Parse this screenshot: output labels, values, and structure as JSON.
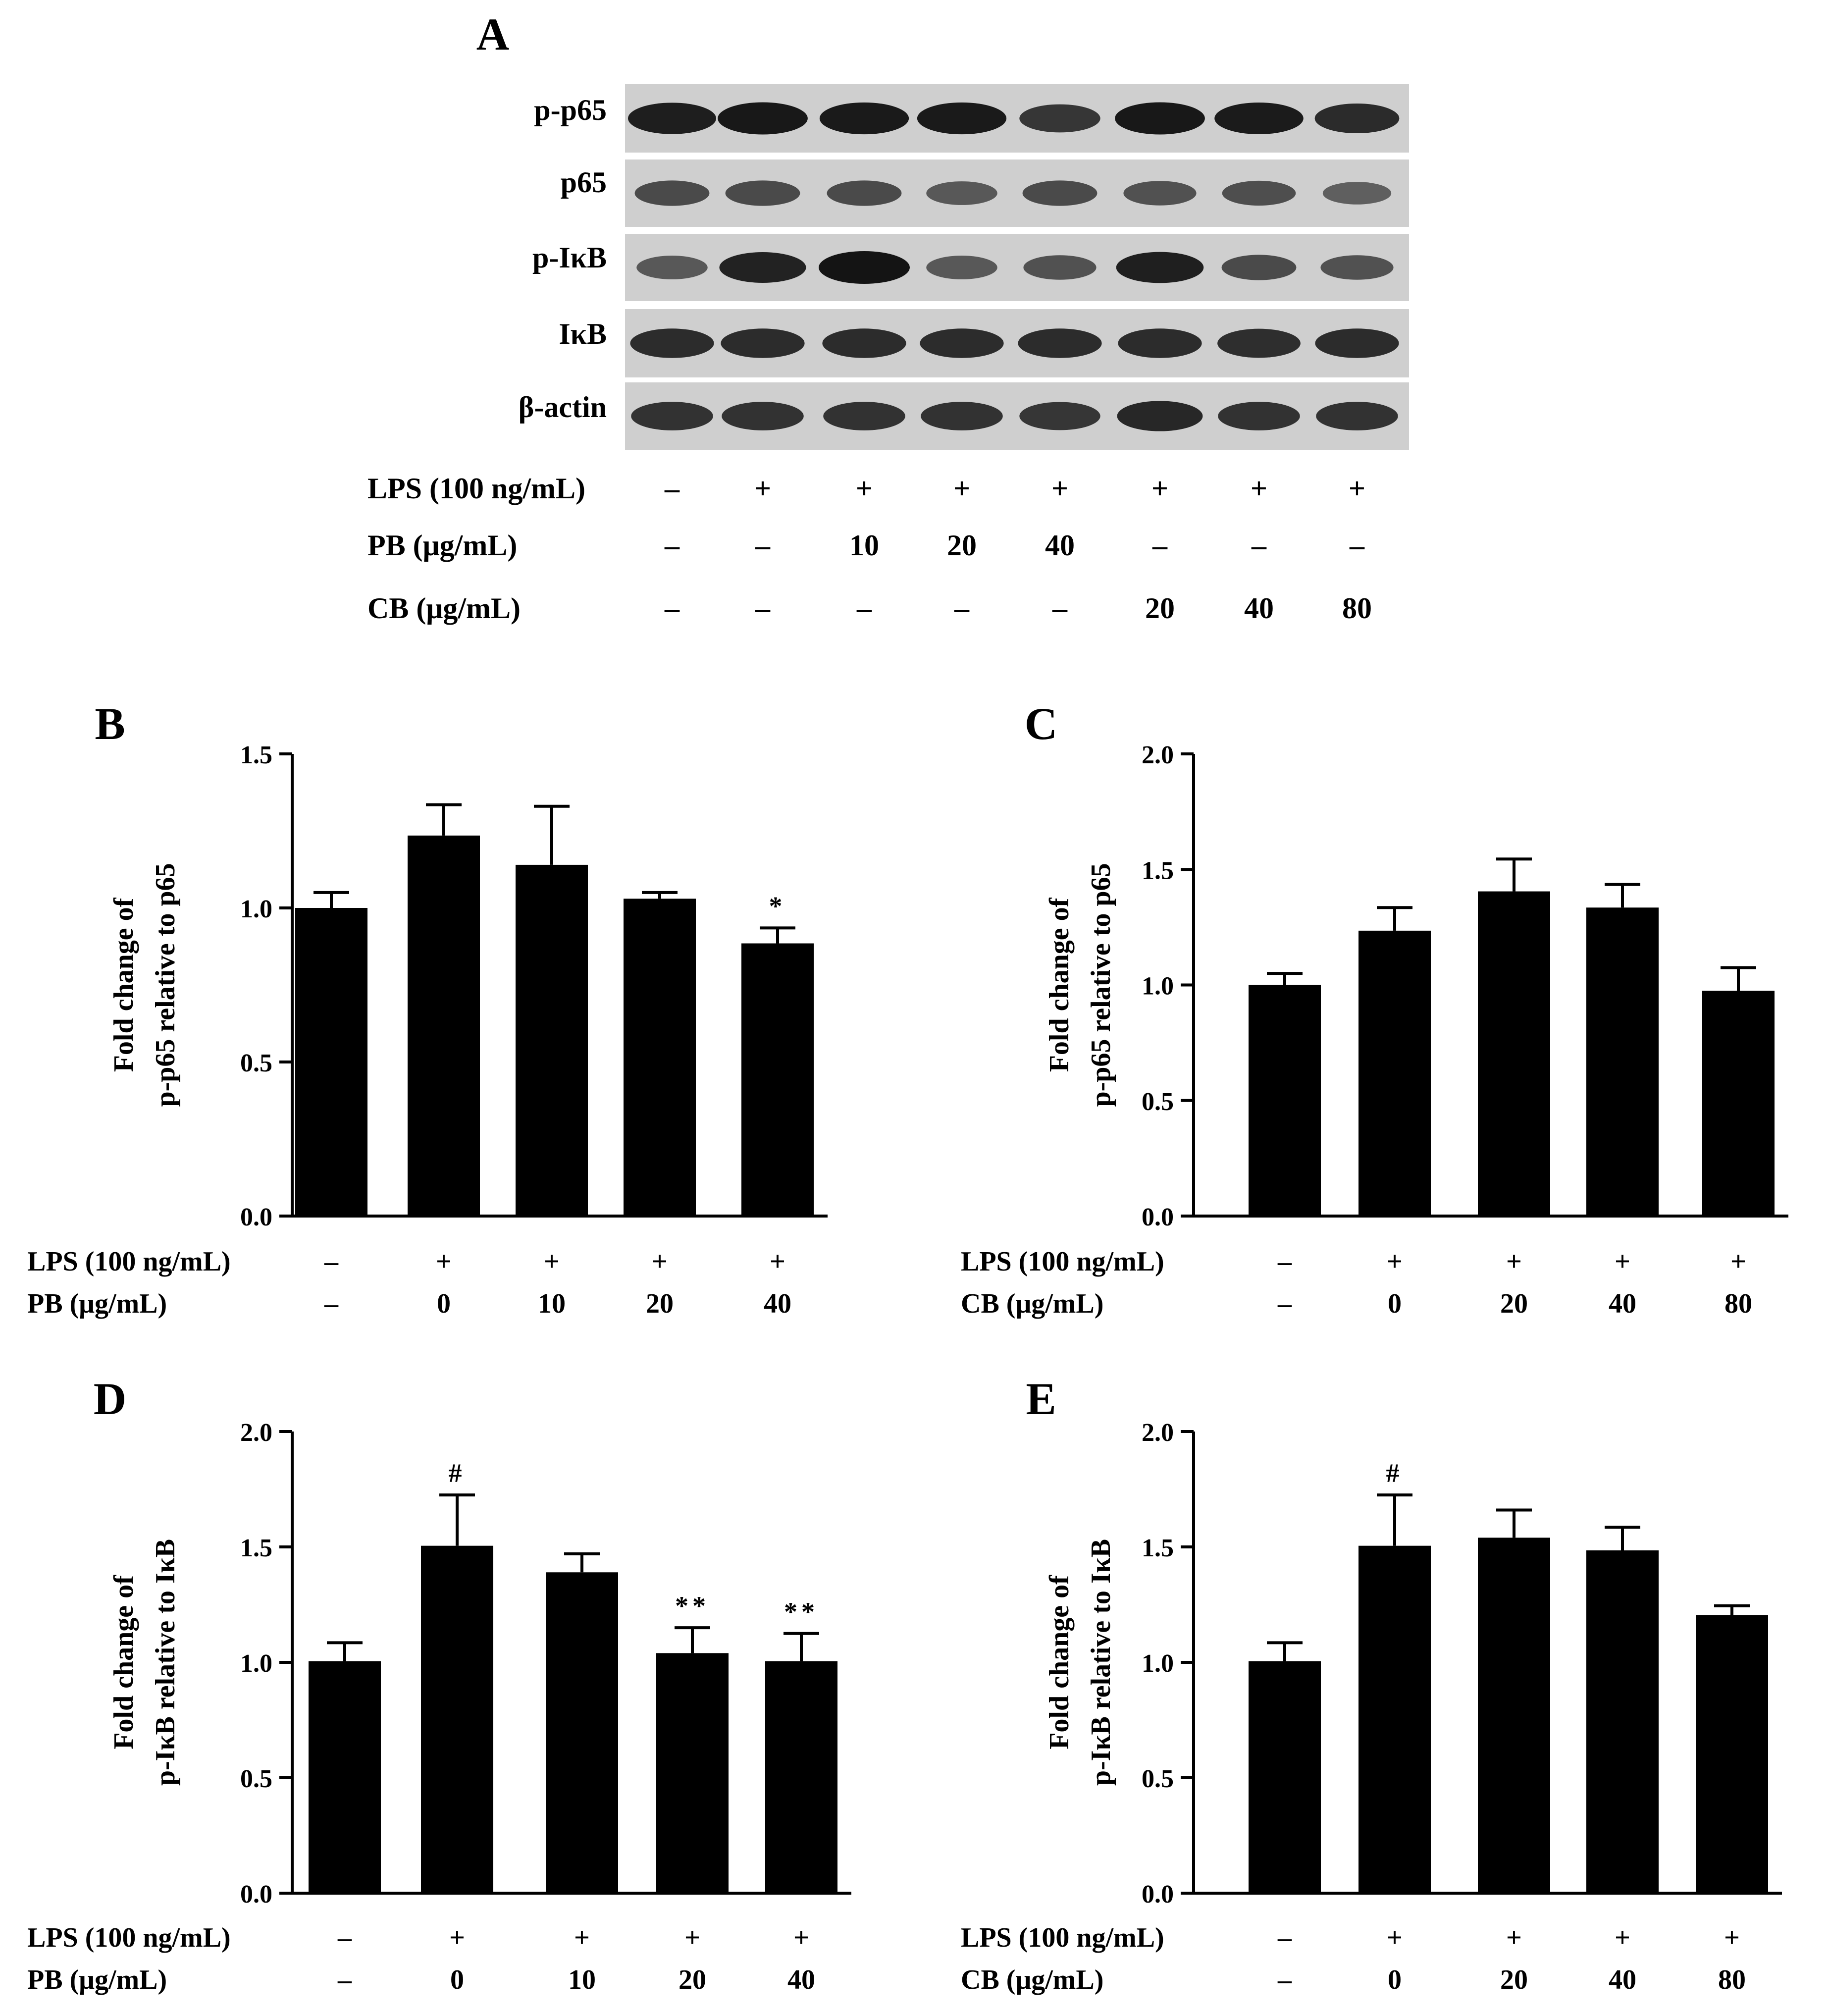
{
  "panel_a": {
    "letter": "A",
    "band_labels": [
      "p-p65",
      "p65",
      "p-IκB",
      "IκB",
      "β-actin"
    ],
    "treatment_rows": [
      {
        "label": "LPS (100 ng/mL)",
        "values": [
          "–",
          "+",
          "+",
          "+",
          "+",
          "+",
          "+",
          "+"
        ]
      },
      {
        "label": "PB (μg/mL)",
        "values": [
          "–",
          "–",
          "10",
          "20",
          "40",
          "–",
          "–",
          "–"
        ]
      },
      {
        "label": "CB (μg/mL)",
        "values": [
          "–",
          "–",
          "–",
          "–",
          "–",
          "20",
          "40",
          "80"
        ]
      }
    ],
    "band_intensity": [
      [
        0.92,
        0.97,
        0.95,
        0.95,
        0.72,
        0.97,
        0.94,
        0.82
      ],
      [
        0.55,
        0.55,
        0.55,
        0.45,
        0.55,
        0.5,
        0.52,
        0.38
      ],
      [
        0.45,
        0.88,
        1.0,
        0.45,
        0.5,
        0.9,
        0.55,
        0.5
      ],
      [
        0.8,
        0.8,
        0.8,
        0.8,
        0.8,
        0.8,
        0.78,
        0.8
      ],
      [
        0.75,
        0.75,
        0.75,
        0.75,
        0.72,
        0.85,
        0.75,
        0.75
      ]
    ],
    "colors": {
      "membrane": "#cfcfcf",
      "band": "#141414"
    }
  },
  "chart_data": [
    {
      "panel": "B",
      "type": "bar",
      "ylabel_lines": [
        "Fold change of",
        "p-p65 relative to p65"
      ],
      "ylim": [
        0,
        1.5
      ],
      "yticks": [
        "0.0",
        "0.5",
        "1.0",
        "1.5"
      ],
      "values": [
        1.0,
        1.235,
        1.14,
        1.03,
        0.885
      ],
      "errors": [
        0.05,
        0.1,
        0.19,
        0.02,
        0.05
      ],
      "annotations": [
        "",
        "",
        "",
        "",
        "*"
      ],
      "row_labels": [
        "LPS (100 ng/mL)",
        "PB (μg/mL)"
      ],
      "row1": [
        "–",
        "+",
        "+",
        "+",
        "+"
      ],
      "row2": [
        "–",
        "0",
        "10",
        "20",
        "40"
      ]
    },
    {
      "panel": "C",
      "type": "bar",
      "ylabel_lines": [
        "Fold change of",
        "p-p65 relative to p65"
      ],
      "ylim": [
        0,
        2.0
      ],
      "yticks": [
        "0.0",
        "0.5",
        "1.0",
        "1.5",
        "2.0"
      ],
      "values": [
        1.0,
        1.235,
        1.405,
        1.335,
        0.975
      ],
      "errors": [
        0.05,
        0.1,
        0.14,
        0.1,
        0.1
      ],
      "annotations": [
        "",
        "",
        "",
        "",
        ""
      ],
      "row_labels": [
        "LPS (100 ng/mL)",
        "CB (μg/mL)"
      ],
      "row1": [
        "–",
        "+",
        "+",
        "+",
        "+"
      ],
      "row2": [
        "–",
        "0",
        "20",
        "40",
        "80"
      ]
    },
    {
      "panel": "D",
      "type": "bar",
      "ylabel_lines": [
        "Fold change of",
        "p-IκB relative to IκB"
      ],
      "ylim": [
        0,
        2.0
      ],
      "yticks": [
        "0.0",
        "0.5",
        "1.0",
        "1.5",
        "2.0"
      ],
      "values": [
        1.005,
        1.505,
        1.39,
        1.04,
        1.005
      ],
      "errors": [
        0.08,
        0.22,
        0.08,
        0.11,
        0.12
      ],
      "annotations": [
        "",
        "#",
        "",
        "**",
        "**"
      ],
      "row_labels": [
        "LPS (100 ng/mL)",
        "PB (μg/mL)"
      ],
      "row1": [
        "–",
        "+",
        "+",
        "+",
        "+"
      ],
      "row2": [
        "–",
        "0",
        "10",
        "20",
        "40"
      ]
    },
    {
      "panel": "E",
      "type": "bar",
      "ylabel_lines": [
        "Fold change of",
        "p-IκB relative to IκB"
      ],
      "ylim": [
        0,
        2.0
      ],
      "yticks": [
        "0.0",
        "0.5",
        "1.0",
        "1.5",
        "2.0"
      ],
      "values": [
        1.005,
        1.505,
        1.54,
        1.485,
        1.205
      ],
      "errors": [
        0.08,
        0.22,
        0.12,
        0.1,
        0.04
      ],
      "annotations": [
        "",
        "#",
        "",
        "",
        ""
      ],
      "row_labels": [
        "LPS (100 ng/mL)",
        "CB (μg/mL)"
      ],
      "row1": [
        "–",
        "+",
        "+",
        "+",
        "+"
      ],
      "row2": [
        "–",
        "0",
        "20",
        "40",
        "80"
      ]
    }
  ]
}
